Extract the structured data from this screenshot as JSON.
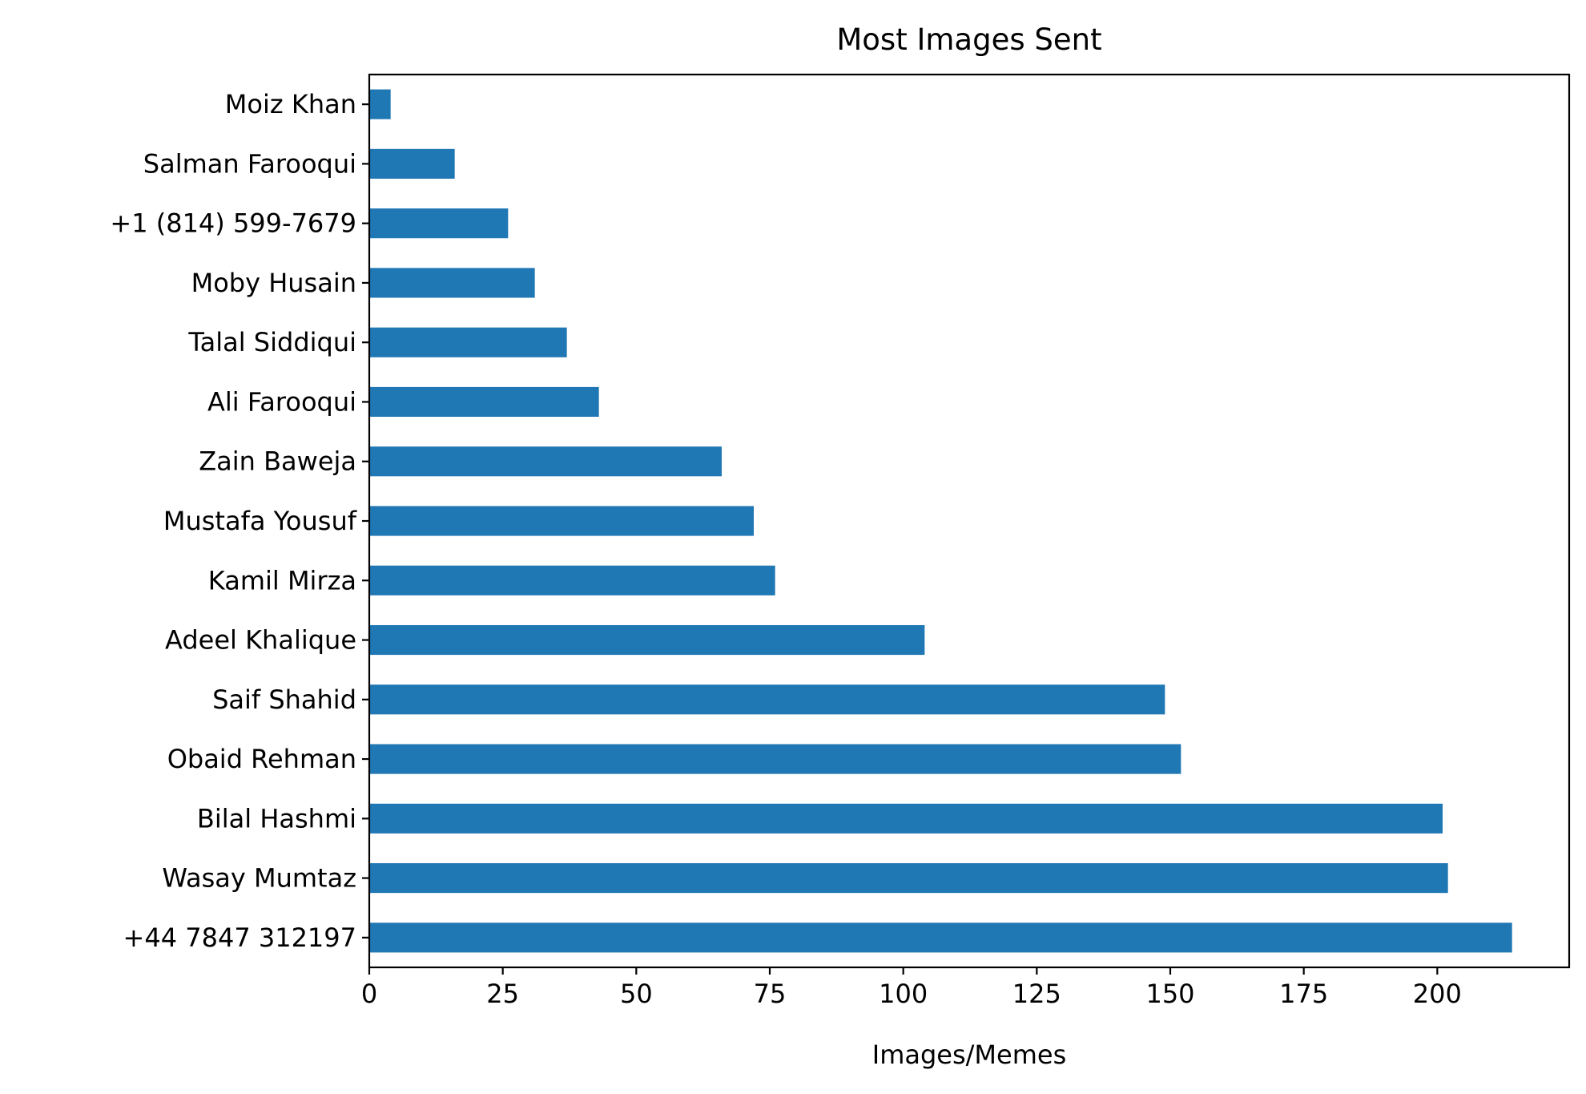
{
  "chart_data": {
    "type": "bar",
    "orientation": "horizontal",
    "title": "Most Images Sent",
    "xlabel": "Images/Memes",
    "ylabel": "",
    "xlim": [
      0,
      224.7
    ],
    "xticks": [
      0,
      25,
      50,
      75,
      100,
      125,
      150,
      175,
      200
    ],
    "grid": false,
    "legend": "none",
    "bar_color": "#1f77b4",
    "categories": [
      "+44 7847 312197",
      "Wasay Mumtaz",
      "Bilal Hashmi",
      "Obaid Rehman",
      "Saif Shahid",
      "Adeel Khalique",
      "Kamil Mirza",
      "Mustafa Yousuf",
      "Zain Baweja",
      "Ali Farooqui",
      "Talal Siddiqui",
      "Moby Husain",
      "+1 (814) 599-7679",
      "Salman Farooqui",
      "Moiz Khan"
    ],
    "values": [
      214,
      202,
      201,
      152,
      149,
      104,
      76,
      72,
      66,
      43,
      37,
      31,
      26,
      16,
      4
    ]
  }
}
